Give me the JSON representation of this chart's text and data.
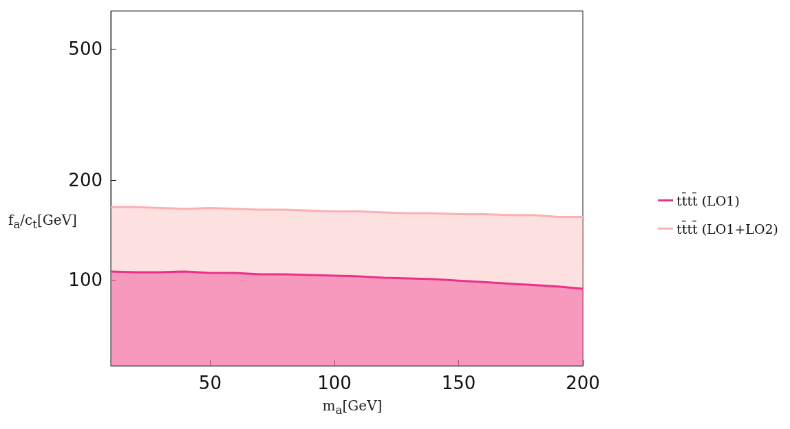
{
  "chart_data": {
    "type": "area",
    "xlabel": "m$_{a}$[GeV]",
    "ylabel": "f$_{a}$/c$_{t}$[GeV]",
    "x": [
      10,
      20,
      30,
      40,
      50,
      60,
      70,
      80,
      90,
      100,
      110,
      120,
      130,
      140,
      150,
      160,
      170,
      180,
      190,
      200
    ],
    "series": [
      {
        "name": "tt̄tt̄ (LO1+LO2)",
        "color": "#fbb1b1",
        "values": [
          166,
          166,
          165,
          164,
          165,
          164,
          163,
          163,
          162,
          161,
          161,
          160,
          159,
          159,
          158,
          158,
          157,
          157,
          155,
          155
        ]
      },
      {
        "name": "tt̄tt̄ (LO1)",
        "color": "#ee2f8a",
        "values": [
          106,
          105.5,
          105.5,
          106,
          105,
          105,
          104,
          104,
          103.5,
          103,
          102.5,
          101.5,
          101,
          100.5,
          99.5,
          98.5,
          97.5,
          96.5,
          95.5,
          94
        ]
      }
    ],
    "xlim": [
      10,
      200
    ],
    "xticks": [
      50,
      100,
      150,
      200
    ],
    "ylim": [
      55,
      650
    ],
    "yticks": [
      100,
      200,
      500
    ],
    "log": "y",
    "legend": "right",
    "grid": false
  }
}
